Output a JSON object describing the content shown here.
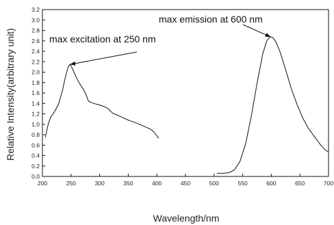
{
  "chart_data": {
    "type": "line",
    "title": "",
    "xlabel": "Wavelength/nm",
    "ylabel": "Relative Intensity(arbitrary unit)",
    "xlim": [
      200,
      700
    ],
    "ylim": [
      0.0,
      3.2
    ],
    "x_ticks": [
      "200",
      "250",
      "300",
      "350",
      "400",
      "450",
      "500",
      "550",
      "600",
      "650",
      "700"
    ],
    "y_ticks": [
      "0.0",
      "0.2",
      "0.4",
      "0.6",
      "0.8",
      "1.0",
      "1.2",
      "1.4",
      "1.6",
      "1.8",
      "2.0",
      "2.2",
      "2.4",
      "2.6",
      "2.8",
      "3.0",
      "3.2"
    ],
    "grid": false,
    "legend": "none",
    "line_color": "#111111",
    "series": [
      {
        "x": [
          205,
          210,
          215,
          220,
          228,
          235,
          240,
          245,
          248,
          250,
          255,
          260,
          265,
          270,
          275,
          278,
          280,
          283,
          285,
          290,
          300,
          310,
          315,
          320,
          325,
          330,
          340,
          350,
          360,
          370,
          380,
          390,
          395,
          400,
          403
        ],
        "y": [
          0.75,
          1.0,
          1.15,
          1.22,
          1.38,
          1.65,
          1.9,
          2.1,
          2.15,
          2.12,
          2.0,
          1.88,
          1.78,
          1.7,
          1.6,
          1.52,
          1.45,
          1.43,
          1.42,
          1.4,
          1.37,
          1.33,
          1.3,
          1.24,
          1.2,
          1.18,
          1.13,
          1.08,
          1.04,
          1.0,
          0.95,
          0.9,
          0.85,
          0.78,
          0.73
        ]
      },
      {
        "x": [
          505,
          515,
          525,
          535,
          545,
          555,
          565,
          575,
          585,
          592,
          598,
          603,
          608,
          615,
          625,
          635,
          645,
          655,
          665,
          675,
          685,
          695,
          700
        ],
        "y": [
          0.06,
          0.06,
          0.07,
          0.12,
          0.28,
          0.62,
          1.15,
          1.78,
          2.35,
          2.6,
          2.68,
          2.66,
          2.58,
          2.4,
          2.05,
          1.68,
          1.38,
          1.12,
          0.92,
          0.77,
          0.62,
          0.5,
          0.47
        ]
      }
    ],
    "annotations": [
      {
        "text": "max  excitation at 250 nm",
        "x": 249,
        "y": 2.15
      },
      {
        "text": "max  emission at 600 nm",
        "x": 598,
        "y": 2.68
      }
    ]
  }
}
